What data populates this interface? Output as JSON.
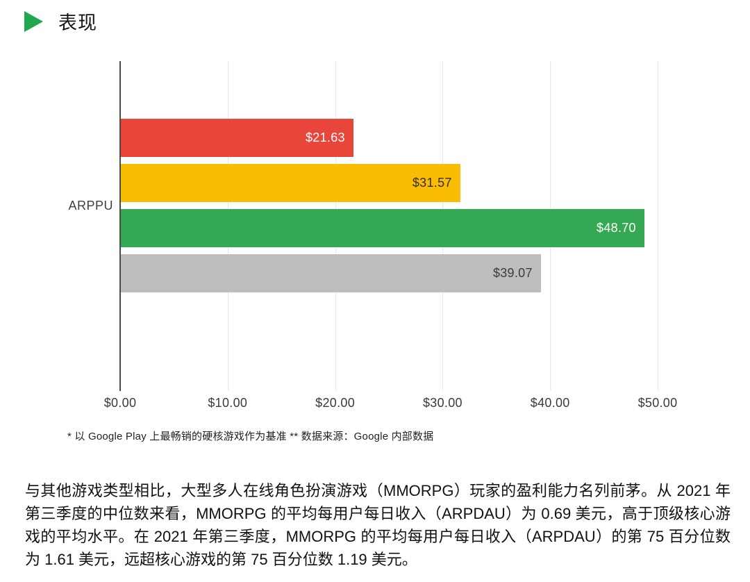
{
  "header": {
    "title": "表现"
  },
  "chart_data": {
    "type": "bar",
    "orientation": "horizontal",
    "categories": [
      "ARPPU"
    ],
    "category_axis_label": "ARPPU",
    "series": [
      {
        "name": "series-1-red",
        "value": 21.63,
        "label": "$21.63",
        "color": "#E8453B",
        "label_color": "#FFFFFF"
      },
      {
        "name": "series-2-yellow",
        "value": 31.57,
        "label": "$31.57",
        "color": "#FBBC04",
        "label_color": "#332F26"
      },
      {
        "name": "series-3-green",
        "value": 48.7,
        "label": "$48.70",
        "color": "#34A853",
        "label_color": "#FFFFFF"
      },
      {
        "name": "series-4-gray",
        "value": 39.07,
        "label": "$39.07",
        "color": "#BDBDBD",
        "label_color": "#3C3C3C"
      }
    ],
    "x_ticks": [
      {
        "value": 0,
        "label": "$0.00"
      },
      {
        "value": 10,
        "label": "$10.00"
      },
      {
        "value": 20,
        "label": "$20.00"
      },
      {
        "value": 30,
        "label": "$30.00"
      },
      {
        "value": 40,
        "label": "$40.00"
      },
      {
        "value": 50,
        "label": "$50.00"
      }
    ],
    "xlim": [
      0,
      50
    ],
    "grid": true,
    "legend_position": "none"
  },
  "footnote": "* 以 Google Play 上最畅销的硬核游戏作为基准 ** 数据来源：Google 内部数据",
  "body": {
    "paragraph": "与其他游戏类型相比，大型多人在线角色扮演游戏（MMORPG）玩家的盈利能力名列前茅。从 2021 年第三季度的中位数来看，MMORPG 的平均每用户每日收入（ARPDAU）为 0.69 美元，高于顶级核心游戏的平均水平。在 2021 年第三季度，MMORPG 的平均每用户每日收入（ARPDAU）的第 75 百分位数为 1.61 美元，远超核心游戏的第 75 百分位数 1.19 美元。"
  },
  "colors": {
    "accent_green": "#1FA84E",
    "axis": "#4A4A4A",
    "gridline": "#E9E9E9"
  }
}
